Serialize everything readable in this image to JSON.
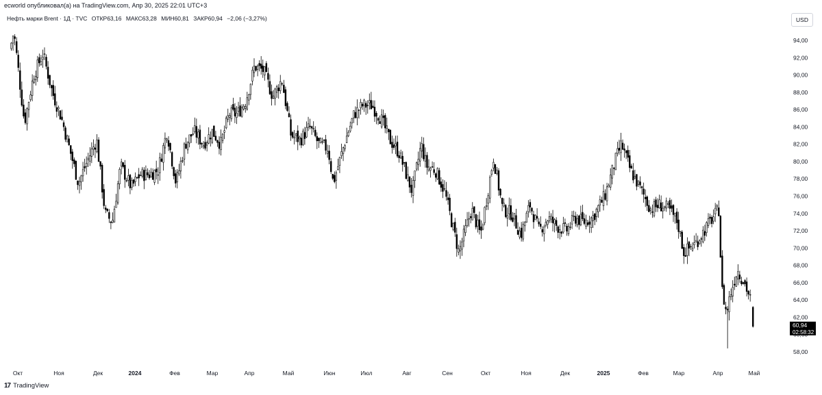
{
  "header": {
    "published": "ecworld опубликовал(а) на TradingView.com, Апр 30, 2025 22:01 UTC+3"
  },
  "legend": {
    "symbol": "Нефть марки Brent · 1Д · TVC",
    "open": "ОТКР63,16",
    "high": "МАКС63,28",
    "low": "МИН60,81",
    "close": "ЗАКР60,94",
    "change": "−2,06 (−3,27%)"
  },
  "currency": "USD",
  "price_label": {
    "value": "60,94",
    "countdown": "02:58:32"
  },
  "footer": {
    "brand": "TradingView",
    "logo": "tv-logo-icon"
  },
  "colors": {
    "candle": "#000000",
    "axis_text": "#131722",
    "badge_bg": "#000000",
    "badge_text": "#ffffff"
  },
  "chart_data": {
    "type": "candlestick",
    "timeframe": "1D",
    "y_axis_ticks": [
      "58,00",
      "60,00",
      "62,00",
      "64,00",
      "66,00",
      "68,00",
      "70,00",
      "72,00",
      "74,00",
      "76,00",
      "78,00",
      "80,00",
      "82,00",
      "84,00",
      "86,00",
      "88,00",
      "90,00",
      "92,00",
      "94,00"
    ],
    "ylim": [
      57,
      96
    ],
    "x_axis_ticks": [
      "Окт",
      "Ноя",
      "Дек",
      "2024",
      "Фев",
      "Мар",
      "Апр",
      "Май",
      "Июн",
      "Июл",
      "Авг",
      "Сен",
      "Окт",
      "Ноя",
      "Дек",
      "2025",
      "Фев",
      "Мар",
      "Апр",
      "Май"
    ],
    "x_axis_bold": [
      "2024",
      "2025"
    ],
    "last_close": 60.94,
    "approx_close_path": [
      {
        "date": "2023-09-25",
        "close": 93.0
      },
      {
        "date": "2023-09-28",
        "close": 95.0
      },
      {
        "date": "2023-10-06",
        "close": 84.5
      },
      {
        "date": "2023-10-13",
        "close": 90.0
      },
      {
        "date": "2023-10-20",
        "close": 92.5
      },
      {
        "date": "2023-10-27",
        "close": 88.0
      },
      {
        "date": "2023-11-03",
        "close": 85.0
      },
      {
        "date": "2023-11-10",
        "close": 81.0
      },
      {
        "date": "2023-11-16",
        "close": 77.5
      },
      {
        "date": "2023-11-24",
        "close": 80.5
      },
      {
        "date": "2023-11-30",
        "close": 82.5
      },
      {
        "date": "2023-12-07",
        "close": 74.0
      },
      {
        "date": "2023-12-13",
        "close": 73.0
      },
      {
        "date": "2023-12-20",
        "close": 79.5
      },
      {
        "date": "2023-12-29",
        "close": 77.0
      },
      {
        "date": "2024-01-05",
        "close": 78.5
      },
      {
        "date": "2024-01-12",
        "close": 78.5
      },
      {
        "date": "2024-01-19",
        "close": 79.0
      },
      {
        "date": "2024-01-26",
        "close": 83.5
      },
      {
        "date": "2024-02-02",
        "close": 77.5
      },
      {
        "date": "2024-02-09",
        "close": 82.0
      },
      {
        "date": "2024-02-16",
        "close": 83.5
      },
      {
        "date": "2024-02-23",
        "close": 82.0
      },
      {
        "date": "2024-03-01",
        "close": 83.5
      },
      {
        "date": "2024-03-08",
        "close": 82.0
      },
      {
        "date": "2024-03-15",
        "close": 85.5
      },
      {
        "date": "2024-03-22",
        "close": 85.5
      },
      {
        "date": "2024-03-29",
        "close": 87.0
      },
      {
        "date": "2024-04-05",
        "close": 91.0
      },
      {
        "date": "2024-04-12",
        "close": 90.5
      },
      {
        "date": "2024-04-19",
        "close": 87.5
      },
      {
        "date": "2024-04-26",
        "close": 89.5
      },
      {
        "date": "2024-05-03",
        "close": 83.0
      },
      {
        "date": "2024-05-10",
        "close": 82.5
      },
      {
        "date": "2024-05-17",
        "close": 84.0
      },
      {
        "date": "2024-05-24",
        "close": 82.0
      },
      {
        "date": "2024-05-31",
        "close": 81.5
      },
      {
        "date": "2024-06-04",
        "close": 77.5
      },
      {
        "date": "2024-06-14",
        "close": 82.5
      },
      {
        "date": "2024-06-21",
        "close": 85.5
      },
      {
        "date": "2024-06-28",
        "close": 86.5
      },
      {
        "date": "2024-07-05",
        "close": 86.5
      },
      {
        "date": "2024-07-12",
        "close": 85.0
      },
      {
        "date": "2024-07-19",
        "close": 82.5
      },
      {
        "date": "2024-07-26",
        "close": 81.0
      },
      {
        "date": "2024-08-05",
        "close": 76.5
      },
      {
        "date": "2024-08-12",
        "close": 82.0
      },
      {
        "date": "2024-08-16",
        "close": 79.5
      },
      {
        "date": "2024-08-23",
        "close": 79.0
      },
      {
        "date": "2024-08-30",
        "close": 76.5
      },
      {
        "date": "2024-09-10",
        "close": 69.5
      },
      {
        "date": "2024-09-20",
        "close": 74.5
      },
      {
        "date": "2024-09-27",
        "close": 71.5
      },
      {
        "date": "2024-10-07",
        "close": 80.5
      },
      {
        "date": "2024-10-14",
        "close": 74.5
      },
      {
        "date": "2024-10-21",
        "close": 74.0
      },
      {
        "date": "2024-10-28",
        "close": 71.5
      },
      {
        "date": "2024-11-04",
        "close": 75.0
      },
      {
        "date": "2024-11-11",
        "close": 72.0
      },
      {
        "date": "2024-11-18",
        "close": 73.5
      },
      {
        "date": "2024-11-25",
        "close": 72.5
      },
      {
        "date": "2024-12-02",
        "close": 72.0
      },
      {
        "date": "2024-12-09",
        "close": 73.5
      },
      {
        "date": "2024-12-16",
        "close": 73.0
      },
      {
        "date": "2024-12-23",
        "close": 73.5
      },
      {
        "date": "2025-01-02",
        "close": 76.0
      },
      {
        "date": "2025-01-10",
        "close": 80.0
      },
      {
        "date": "2025-01-15",
        "close": 82.0
      },
      {
        "date": "2025-01-22",
        "close": 79.0
      },
      {
        "date": "2025-01-31",
        "close": 76.5
      },
      {
        "date": "2025-02-07",
        "close": 74.5
      },
      {
        "date": "2025-02-14",
        "close": 75.0
      },
      {
        "date": "2025-02-21",
        "close": 74.5
      },
      {
        "date": "2025-02-28",
        "close": 73.0
      },
      {
        "date": "2025-03-05",
        "close": 69.5
      },
      {
        "date": "2025-03-14",
        "close": 70.5
      },
      {
        "date": "2025-03-21",
        "close": 72.0
      },
      {
        "date": "2025-03-28",
        "close": 73.5
      },
      {
        "date": "2025-04-02",
        "close": 74.5
      },
      {
        "date": "2025-04-04",
        "close": 65.5
      },
      {
        "date": "2025-04-08",
        "close": 62.5
      },
      {
        "date": "2025-04-11",
        "close": 64.5
      },
      {
        "date": "2025-04-17",
        "close": 67.5
      },
      {
        "date": "2025-04-23",
        "close": 66.0
      },
      {
        "date": "2025-04-28",
        "close": 64.0
      },
      {
        "date": "2025-04-30",
        "close": 60.94
      }
    ]
  }
}
